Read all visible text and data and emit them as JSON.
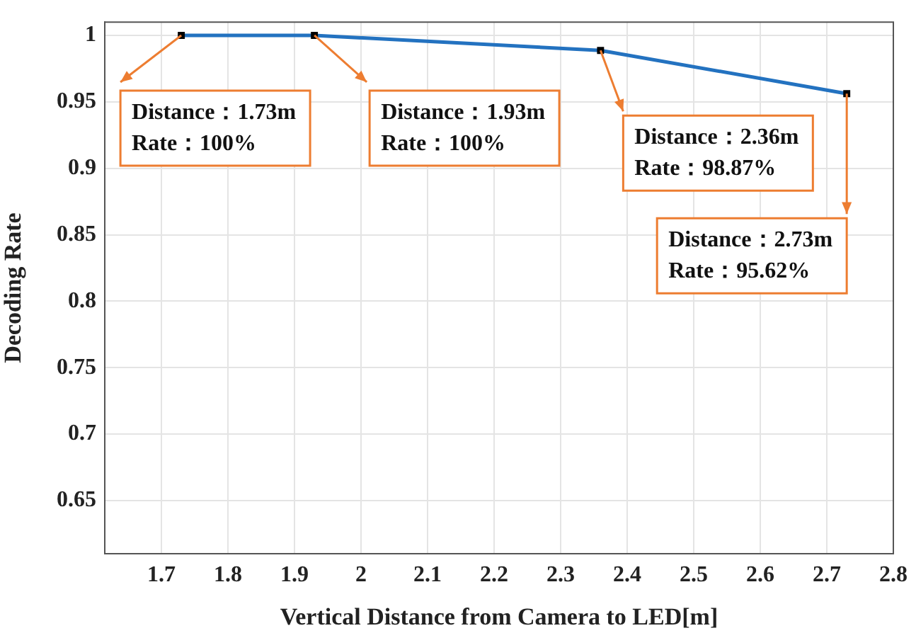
{
  "chart_data": {
    "type": "line",
    "xlabel": "Vertical Distance from Camera to LED[m]",
    "ylabel": "Decoding Rate",
    "x": [
      1.73,
      1.93,
      2.36,
      2.73
    ],
    "series": [
      {
        "color": "#2372c0",
        "values": [
          1,
          1,
          0.9887,
          0.9562
        ]
      }
    ],
    "xlim": [
      1.615,
      2.8
    ],
    "xticks": [
      1.7,
      1.8,
      1.9,
      2,
      2.1,
      2.2,
      2.3,
      2.4,
      2.5,
      2.6,
      2.7,
      2.8
    ],
    "ylim": [
      0.61,
      1.01
    ],
    "yticks": [
      0.65,
      0.7,
      0.75,
      0.8,
      0.85,
      0.9,
      0.95,
      1
    ],
    "grid": true,
    "legend": false,
    "marker": "square",
    "line_style": "solid",
    "annotations": [
      {
        "text": "Distance：1.73m\nRate：100%",
        "x": 1.73,
        "y": 1
      },
      {
        "text": "Distance：1.93m\nRate：100%",
        "x": 1.93,
        "y": 1
      },
      {
        "text": "Distance：2.36m\nRate：98.87%",
        "x": 2.36,
        "y": 0.9887
      },
      {
        "text": "Distance：2.73m\nRate：95.62%",
        "x": 2.73,
        "y": 0.9562
      }
    ]
  }
}
